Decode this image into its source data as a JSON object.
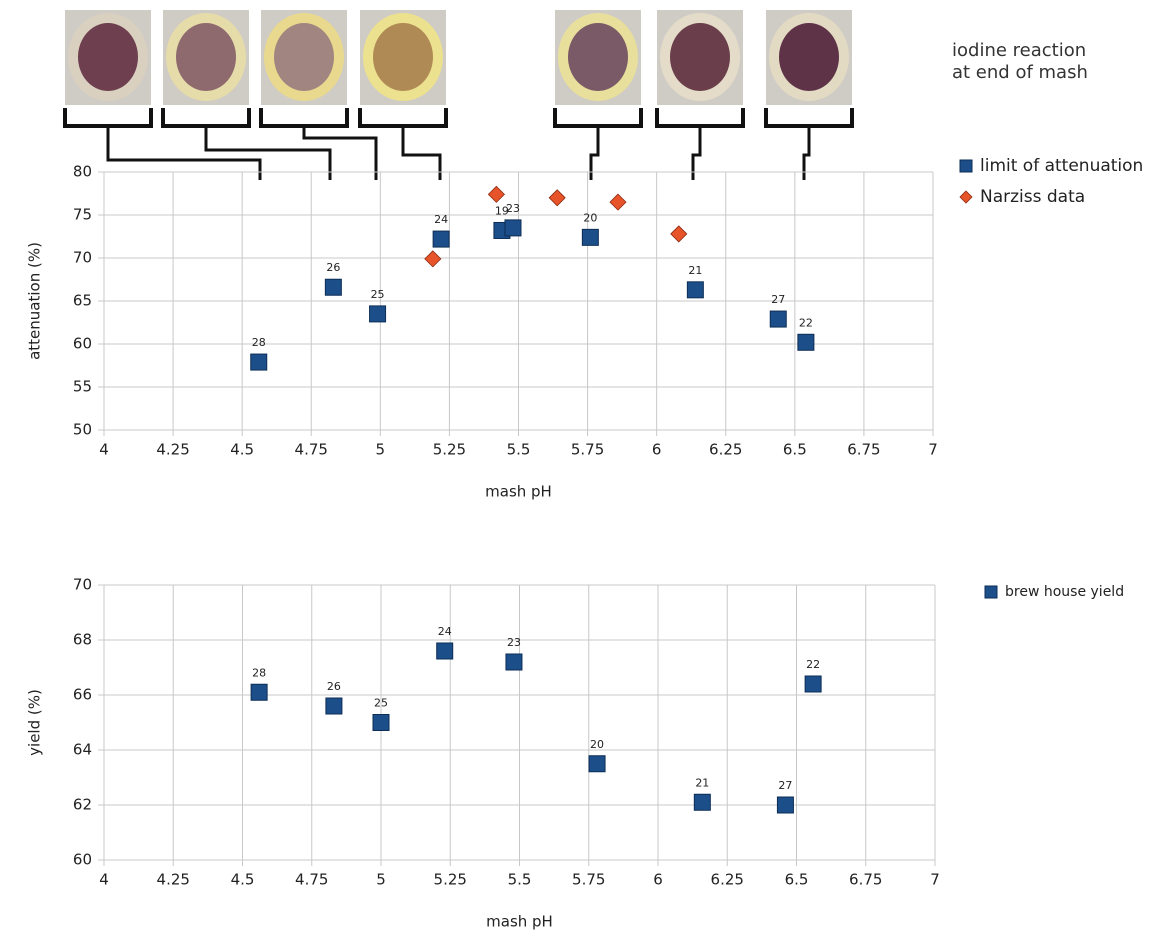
{
  "chart_data": [
    {
      "type": "scatter",
      "annotation": "iodine reaction at end of mash",
      "x_label": "mash pH",
      "y_label": "attenuation (%)",
      "xlim": [
        4,
        7
      ],
      "xticks": [
        4,
        4.25,
        4.5,
        4.75,
        5,
        5.25,
        5.5,
        5.75,
        6,
        6.25,
        6.5,
        6.75,
        7
      ],
      "ylim": [
        50,
        80
      ],
      "yticks": [
        50,
        55,
        60,
        65,
        70,
        75,
        80
      ],
      "grid": true,
      "legend": "right",
      "series": [
        {
          "name": "limit of attenuation",
          "marker": "square",
          "color": "#1c4f8a",
          "x": [
            4.56,
            4.83,
            4.99,
            5.22,
            5.44,
            5.48,
            5.76,
            6.14,
            6.44,
            6.54
          ],
          "values": [
            57.9,
            66.6,
            63.5,
            72.2,
            73.2,
            73.5,
            72.4,
            66.3,
            62.9,
            60.2
          ],
          "point_labels": [
            "28",
            "26",
            "25",
            "24",
            "19",
            "23",
            "20",
            "21",
            "27",
            "22"
          ]
        },
        {
          "name": "Narziss data",
          "marker": "diamond",
          "color": "#e8542a",
          "x": [
            5.19,
            5.42,
            5.64,
            5.86,
            6.08
          ],
          "values": [
            69.9,
            77.4,
            77.0,
            76.5,
            72.8
          ]
        }
      ]
    },
    {
      "type": "scatter",
      "x_label": "mash pH",
      "y_label": "yield (%)",
      "xlim": [
        4,
        7
      ],
      "xticks": [
        4,
        4.25,
        4.5,
        4.75,
        5,
        5.25,
        5.5,
        5.75,
        6,
        6.25,
        6.5,
        6.75,
        7
      ],
      "ylim": [
        60,
        70
      ],
      "yticks": [
        60,
        62,
        64,
        66,
        68,
        70
      ],
      "grid": true,
      "legend": "right",
      "series": [
        {
          "name": "brew house yield",
          "marker": "square",
          "color": "#1c4f8a",
          "x": [
            4.56,
            4.83,
            5.0,
            5.23,
            5.48,
            5.78,
            6.16,
            6.46,
            6.56
          ],
          "values": [
            66.1,
            65.6,
            65.0,
            67.6,
            67.2,
            63.5,
            62.1,
            62.0,
            66.4
          ],
          "point_labels": [
            "28",
            "26",
            "25",
            "24",
            "23",
            "20",
            "21",
            "27",
            "22"
          ]
        }
      ]
    }
  ]
}
